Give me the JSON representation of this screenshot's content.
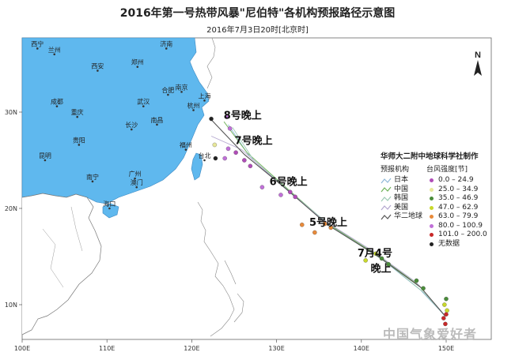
{
  "title": "2016年第一号热带风暴\"尼伯特\"各机构预报路径示意图",
  "subtitle": "2016年7月3日20时[北京时]",
  "axes": {
    "lon_ticks": [
      "100E",
      "110E",
      "120E",
      "130E",
      "140E",
      "150E"
    ],
    "lat_ticks": [
      "10N",
      "20N",
      "30N"
    ]
  },
  "north_label": "N",
  "cities": [
    {
      "name": "西宁",
      "lon": 101.8,
      "lat": 36.6
    },
    {
      "name": "兰州",
      "lon": 103.8,
      "lat": 36.0
    },
    {
      "name": "济南",
      "lon": 117.0,
      "lat": 36.6
    },
    {
      "name": "西安",
      "lon": 108.9,
      "lat": 34.3
    },
    {
      "name": "郑州",
      "lon": 113.6,
      "lat": 34.7
    },
    {
      "name": "南京",
      "lon": 118.8,
      "lat": 32.1
    },
    {
      "name": "上海",
      "lon": 121.5,
      "lat": 31.2
    },
    {
      "name": "合肥",
      "lon": 117.2,
      "lat": 31.8
    },
    {
      "name": "成都",
      "lon": 104.1,
      "lat": 30.6
    },
    {
      "name": "武汉",
      "lon": 114.3,
      "lat": 30.6
    },
    {
      "name": "杭州",
      "lon": 120.2,
      "lat": 30.2
    },
    {
      "name": "重庆",
      "lon": 106.5,
      "lat": 29.5
    },
    {
      "name": "长沙",
      "lon": 112.9,
      "lat": 28.2
    },
    {
      "name": "南昌",
      "lon": 115.9,
      "lat": 28.7
    },
    {
      "name": "贵阳",
      "lon": 106.7,
      "lat": 26.6
    },
    {
      "name": "福州",
      "lon": 119.3,
      "lat": 26.1
    },
    {
      "name": "台北",
      "lon": 121.5,
      "lat": 25.0
    },
    {
      "name": "昆明",
      "lon": 102.7,
      "lat": 25.0
    },
    {
      "name": "南宁",
      "lon": 108.3,
      "lat": 22.8
    },
    {
      "name": "广州",
      "lon": 113.3,
      "lat": 23.1
    },
    {
      "name": "澳门",
      "lon": 113.5,
      "lat": 22.2
    },
    {
      "name": "海口",
      "lon": 110.3,
      "lat": 20.0
    }
  ],
  "day_labels": [
    {
      "text": "8号晚上",
      "lon": 126.0,
      "lat": 29.3
    },
    {
      "text": "7号晚上",
      "lon": 127.3,
      "lat": 26.7
    },
    {
      "text": "6号晚上",
      "lon": 131.4,
      "lat": 22.4
    },
    {
      "text": "5号晚上",
      "lon": 136.1,
      "lat": 18.2
    },
    {
      "text": "7月4号",
      "lon": 141.6,
      "lat": 15.0
    },
    {
      "text": "晚上",
      "lon": 142.3,
      "lat": 13.4
    }
  ],
  "legend": {
    "credit": "华师大二附中地球科学社制作",
    "agency_header": "预报机构",
    "intensity_header": "台风强度[节]",
    "agencies": [
      {
        "name": "日本",
        "color": "#8fb8d8"
      },
      {
        "name": "中国",
        "color": "#6fb35a"
      },
      {
        "name": "韩国",
        "color": "#9ccab4"
      },
      {
        "name": "美国",
        "color": "#b4a7cf"
      },
      {
        "name": "华二地球",
        "color": "#555555"
      }
    ],
    "intensity": [
      {
        "label": "0.0 – 24.9",
        "color": "#b04db8"
      },
      {
        "label": "25.0 – 34.9",
        "color": "#e8e89a"
      },
      {
        "label": "35.0 – 46.9",
        "color": "#4a8c3a"
      },
      {
        "label": "47.0 – 62.9",
        "color": "#c8d82a"
      },
      {
        "label": "63.0 – 79.9",
        "color": "#e88a3a"
      },
      {
        "label": "80.0 – 100.9",
        "color": "#c070d8"
      },
      {
        "label": "101.0 – 200.0",
        "color": "#c82828"
      },
      {
        "label": "无数据",
        "color": "#222222"
      }
    ]
  },
  "tracks": [
    {
      "agency": "日本",
      "points": [
        [
          149.9,
          8.8
        ],
        [
          147.0,
          11.5
        ],
        [
          142.3,
          14.8
        ],
        [
          136.3,
          18.2
        ],
        [
          131.5,
          21.7
        ],
        [
          126.8,
          25.4
        ],
        [
          124.3,
          28.7
        ]
      ]
    },
    {
      "agency": "中国",
      "points": [
        [
          149.9,
          8.8
        ],
        [
          146.8,
          12.0
        ],
        [
          141.8,
          15.2
        ],
        [
          135.9,
          18.5
        ],
        [
          131.2,
          22.1
        ],
        [
          126.5,
          25.8
        ],
        [
          123.8,
          29.0
        ]
      ]
    },
    {
      "agency": "韩国",
      "points": [
        [
          149.9,
          8.8
        ],
        [
          147.3,
          11.3
        ],
        [
          142.8,
          14.5
        ],
        [
          136.6,
          18.0
        ],
        [
          131.9,
          21.5
        ],
        [
          127.3,
          25.0
        ],
        [
          124.8,
          28.4
        ]
      ]
    },
    {
      "agency": "美国",
      "points": [
        [
          149.9,
          8.8
        ],
        [
          146.5,
          12.3
        ],
        [
          141.3,
          15.6
        ],
        [
          135.3,
          18.9
        ],
        [
          130.6,
          22.4
        ],
        [
          125.9,
          26.1
        ],
        [
          122.3,
          27.5
        ]
      ]
    },
    {
      "agency": "华二地球",
      "points": [
        [
          149.9,
          8.8
        ],
        [
          147.0,
          11.8
        ],
        [
          142.0,
          15.0
        ],
        [
          136.0,
          18.3
        ],
        [
          131.3,
          21.9
        ],
        [
          126.2,
          25.6
        ],
        [
          122.2,
          29.3
        ]
      ]
    }
  ],
  "markers": [
    {
      "lon": 149.9,
      "lat": 8.0,
      "level": "101.0 – 200.0"
    },
    {
      "lon": 149.7,
      "lat": 8.6,
      "level": "101.0 – 200.0"
    },
    {
      "lon": 150.0,
      "lat": 9.0,
      "level": "101.0 – 200.0"
    },
    {
      "lon": 150.1,
      "lat": 9.4,
      "level": "47.0 – 62.9"
    },
    {
      "lon": 149.8,
      "lat": 10.0,
      "level": "47.0 – 62.9"
    },
    {
      "lon": 150.0,
      "lat": 10.6,
      "level": "35.0 – 46.9"
    },
    {
      "lon": 147.3,
      "lat": 11.7,
      "level": "35.0 – 46.9"
    },
    {
      "lon": 146.5,
      "lat": 12.5,
      "level": "35.0 – 46.9"
    },
    {
      "lon": 143.2,
      "lat": 14.2,
      "level": "35.0 – 46.9"
    },
    {
      "lon": 142.4,
      "lat": 14.8,
      "level": "35.0 – 46.9"
    },
    {
      "lon": 141.7,
      "lat": 15.3,
      "level": "47.0 – 62.9"
    },
    {
      "lon": 140.5,
      "lat": 14.6,
      "level": "47.0 – 62.9"
    },
    {
      "lon": 136.4,
      "lat": 18.0,
      "level": "63.0 – 79.9"
    },
    {
      "lon": 135.7,
      "lat": 18.4,
      "level": "63.0 – 79.9"
    },
    {
      "lon": 134.5,
      "lat": 17.5,
      "level": "63.0 – 79.9"
    },
    {
      "lon": 133.0,
      "lat": 18.3,
      "level": "63.0 – 79.9"
    },
    {
      "lon": 132.2,
      "lat": 21.2,
      "level": "0.0 – 24.9"
    },
    {
      "lon": 131.6,
      "lat": 21.7,
      "level": "0.0 – 24.9"
    },
    {
      "lon": 130.5,
      "lat": 21.4,
      "level": "80.0 – 100.9"
    },
    {
      "lon": 128.3,
      "lat": 22.2,
      "level": "80.0 – 100.9"
    },
    {
      "lon": 126.9,
      "lat": 24.4,
      "level": "0.0 – 24.9"
    },
    {
      "lon": 126.2,
      "lat": 25.0,
      "level": "0.0 – 24.9"
    },
    {
      "lon": 125.2,
      "lat": 25.8,
      "level": "0.0 – 24.9"
    },
    {
      "lon": 124.3,
      "lat": 26.2,
      "level": "80.0 – 100.9"
    },
    {
      "lon": 123.9,
      "lat": 25.2,
      "level": "80.0 – 100.9"
    },
    {
      "lon": 124.5,
      "lat": 28.3,
      "level": "80.0 – 100.9"
    },
    {
      "lon": 124.1,
      "lat": 29.5,
      "level": "80.0 – 100.9"
    },
    {
      "lon": 122.7,
      "lat": 26.6,
      "level": "25.0 – 34.9"
    },
    {
      "lon": 122.3,
      "lat": 29.3,
      "level": "无数据"
    },
    {
      "lon": 122.8,
      "lat": 25.2,
      "level": "无数据"
    }
  ],
  "watermark": "中国气象爱好者"
}
